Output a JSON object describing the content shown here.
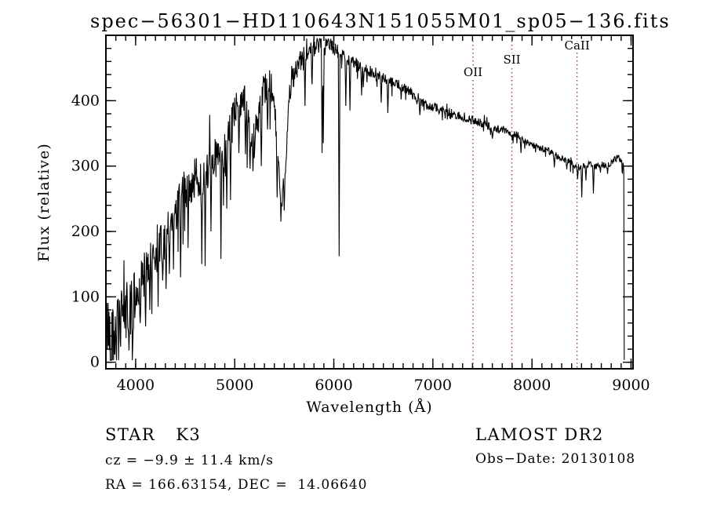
{
  "chart_data": {
    "type": "line",
    "title": "spec−56301−HD110643N151055M01_sp05−136.fits",
    "xlabel": "Wavelength (Å)",
    "ylabel": "Flux (relative)",
    "xlim": [
      3700,
      9020
    ],
    "ylim": [
      -10,
      500
    ],
    "xticks": [
      4000,
      5000,
      6000,
      7000,
      8000,
      9000
    ],
    "yticks": [
      0,
      100,
      200,
      300,
      400
    ],
    "x_minor_step": 100,
    "y_minor_step": 20,
    "grid": false,
    "line_color": "#000000",
    "axis_color": "#000000",
    "background": "#ffffff",
    "marker_color": "#a04038",
    "marker_lines": [
      {
        "label": "OII",
        "wavelength": 7405,
        "label_y": 97
      },
      {
        "label": "SII",
        "wavelength": 7797,
        "label_y": 81
      },
      {
        "label": "CaII",
        "wavelength": 8455,
        "label_y": 63
      }
    ],
    "spectrum": {
      "x_start": 3706,
      "x_end": 8928,
      "x_step": 4.2,
      "seed": 42,
      "end_drop_flux": 4,
      "envelope": [
        [
          3700,
          55
        ],
        [
          3740,
          50
        ],
        [
          3780,
          42
        ],
        [
          3820,
          48
        ],
        [
          3860,
          60
        ],
        [
          3900,
          75
        ],
        [
          3940,
          85
        ],
        [
          3980,
          92
        ],
        [
          4020,
          105
        ],
        [
          4060,
          122
        ],
        [
          4100,
          125
        ],
        [
          4140,
          142
        ],
        [
          4180,
          160
        ],
        [
          4220,
          178
        ],
        [
          4260,
          188
        ],
        [
          4300,
          175
        ],
        [
          4340,
          205
        ],
        [
          4380,
          222
        ],
        [
          4420,
          238
        ],
        [
          4460,
          252
        ],
        [
          4500,
          262
        ],
        [
          4540,
          270
        ],
        [
          4580,
          277
        ],
        [
          4620,
          282
        ],
        [
          4660,
          287
        ],
        [
          4700,
          292
        ],
        [
          4740,
          300
        ],
        [
          4780,
          308
        ],
        [
          4820,
          315
        ],
        [
          4860,
          308
        ],
        [
          4900,
          330
        ],
        [
          4940,
          345
        ],
        [
          4980,
          368
        ],
        [
          5020,
          392
        ],
        [
          5060,
          402
        ],
        [
          5100,
          400
        ],
        [
          5140,
          360
        ],
        [
          5175,
          330
        ],
        [
          5210,
          350
        ],
        [
          5250,
          395
        ],
        [
          5290,
          415
        ],
        [
          5330,
          428
        ],
        [
          5370,
          420
        ],
        [
          5410,
          370
        ],
        [
          5445,
          290
        ],
        [
          5470,
          240
        ],
        [
          5495,
          265
        ],
        [
          5520,
          330
        ],
        [
          5550,
          400
        ],
        [
          5590,
          438
        ],
        [
          5640,
          455
        ],
        [
          5700,
          468
        ],
        [
          5760,
          477
        ],
        [
          5820,
          484
        ],
        [
          5880,
          486
        ],
        [
          5940,
          488
        ],
        [
          6000,
          481
        ],
        [
          6060,
          472
        ],
        [
          6120,
          466
        ],
        [
          6180,
          460
        ],
        [
          6240,
          455
        ],
        [
          6300,
          448
        ],
        [
          6360,
          444
        ],
        [
          6420,
          440
        ],
        [
          6480,
          436
        ],
        [
          6540,
          430
        ],
        [
          6600,
          428
        ],
        [
          6660,
          424
        ],
        [
          6720,
          419
        ],
        [
          6780,
          413
        ],
        [
          6840,
          404
        ],
        [
          6900,
          396
        ],
        [
          6960,
          392
        ],
        [
          7020,
          390
        ],
        [
          7080,
          387
        ],
        [
          7140,
          384
        ],
        [
          7200,
          380
        ],
        [
          7260,
          377
        ],
        [
          7320,
          374
        ],
        [
          7380,
          370
        ],
        [
          7440,
          368
        ],
        [
          7500,
          366
        ],
        [
          7560,
          362
        ],
        [
          7620,
          356
        ],
        [
          7680,
          358
        ],
        [
          7740,
          354
        ],
        [
          7800,
          350
        ],
        [
          7860,
          347
        ],
        [
          7920,
          338
        ],
        [
          7980,
          333
        ],
        [
          8040,
          330
        ],
        [
          8100,
          327
        ],
        [
          8160,
          324
        ],
        [
          8220,
          318
        ],
        [
          8280,
          313
        ],
        [
          8340,
          309
        ],
        [
          8400,
          305
        ],
        [
          8460,
          298
        ],
        [
          8520,
          300
        ],
        [
          8580,
          303
        ],
        [
          8640,
          300
        ],
        [
          8700,
          303
        ],
        [
          8760,
          300
        ],
        [
          8820,
          308
        ],
        [
          8870,
          314
        ],
        [
          8905,
          308
        ],
        [
          8925,
          300
        ]
      ],
      "noise_amplitude": [
        [
          3700,
          52
        ],
        [
          3800,
          55
        ],
        [
          3900,
          48
        ],
        [
          4000,
          42
        ],
        [
          4100,
          40
        ],
        [
          4200,
          38
        ],
        [
          4300,
          36
        ],
        [
          4500,
          33
        ],
        [
          4700,
          32
        ],
        [
          4900,
          30
        ],
        [
          5100,
          26
        ],
        [
          5300,
          24
        ],
        [
          5500,
          22
        ],
        [
          5700,
          16
        ],
        [
          5900,
          12
        ],
        [
          6100,
          10
        ],
        [
          6300,
          9
        ],
        [
          6500,
          8
        ],
        [
          6800,
          7
        ],
        [
          7200,
          7
        ],
        [
          7600,
          6
        ],
        [
          8000,
          5
        ],
        [
          8400,
          5
        ],
        [
          8930,
          5
        ]
      ],
      "absorption_lines": [
        [
          3933,
          18
        ],
        [
          3970,
          25
        ],
        [
          4046,
          60
        ],
        [
          4101,
          55
        ],
        [
          4144,
          80
        ],
        [
          4227,
          85
        ],
        [
          4271,
          125
        ],
        [
          4305,
          112
        ],
        [
          4340,
          135
        ],
        [
          4383,
          142
        ],
        [
          4455,
          130
        ],
        [
          4531,
          175
        ],
        [
          4668,
          150
        ],
        [
          4703,
          147
        ],
        [
          4762,
          200
        ],
        [
          4861,
          158
        ],
        [
          4920,
          235
        ],
        [
          4957,
          248
        ],
        [
          5040,
          320
        ],
        [
          5110,
          318
        ],
        [
          5155,
          296
        ],
        [
          5185,
          292
        ],
        [
          5270,
          300
        ],
        [
          5332,
          356
        ],
        [
          5430,
          252
        ],
        [
          5465,
          215
        ],
        [
          5500,
          232
        ],
        [
          5710,
          392
        ],
        [
          5782,
          425
        ],
        [
          5880,
          320
        ],
        [
          5893,
          335
        ],
        [
          6055,
          162
        ],
        [
          6122,
          392
        ],
        [
          6162,
          385
        ],
        [
          6280,
          408
        ],
        [
          6480,
          397
        ],
        [
          6544,
          381
        ],
        [
          6680,
          402
        ],
        [
          6870,
          378
        ],
        [
          7060,
          380
        ],
        [
          7180,
          372
        ],
        [
          7340,
          368
        ],
        [
          7600,
          342
        ],
        [
          7665,
          350
        ],
        [
          7890,
          320
        ],
        [
          8225,
          298
        ],
        [
          8350,
          295
        ],
        [
          8461,
          280
        ],
        [
          8503,
          252
        ],
        [
          8545,
          278
        ],
        [
          8619,
          258
        ],
        [
          8690,
          290
        ],
        [
          8764,
          288
        ]
      ]
    }
  },
  "annotations": {
    "class_label": "STAR",
    "class_value": "K3",
    "cz": "cz = −9.9 ± 11.4 km/s",
    "ra_dec": "RA = 166.63154, DEC =  14.06640",
    "survey": "LAMOST DR2",
    "obs_date": "Obs−Date: 20130108"
  }
}
